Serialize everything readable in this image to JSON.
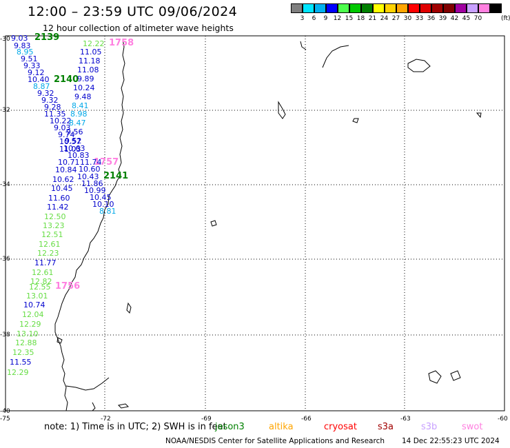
{
  "header": {
    "title": "12:00 – 23:59 UTC 09/06/2024",
    "subtitle": "12 hour collection of altimeter wave heights"
  },
  "legend": {
    "unit": "(ft)",
    "colors": [
      "#7f7f7f",
      "#00e5ff",
      "#00b0f0",
      "#0000ff",
      "#4dff4d",
      "#00c800",
      "#008000",
      "#ffff00",
      "#ffd200",
      "#ffa500",
      "#ff0000",
      "#e00000",
      "#a00000",
      "#800000",
      "#a000a0",
      "#c8a0ff",
      "#ff80e0",
      "#000000"
    ],
    "labels": [
      "3",
      "6",
      "9",
      "12",
      "15",
      "18",
      "21",
      "24",
      "27",
      "30",
      "33",
      "36",
      "39",
      "42",
      "45",
      "70"
    ]
  },
  "axes": {
    "lat_labels": [
      "-30",
      "-32",
      "-34",
      "-36",
      "-38",
      "-40"
    ],
    "lon_labels": [
      "-75",
      "-72",
      "-69",
      "-66",
      "-63",
      "-60"
    ]
  },
  "passes": [
    {
      "text": "2139",
      "color": "#008000"
    },
    {
      "text": "1758",
      "color": "#ff80e0"
    },
    {
      "text": "2140",
      "color": "#008000"
    },
    {
      "text": "1757",
      "color": "#ff80e0"
    },
    {
      "text": "2141",
      "color": "#008000"
    },
    {
      "text": "1756",
      "color": "#ff80e0"
    }
  ],
  "wave_heights": [
    {
      "text": "9.03",
      "color": "#0000cd"
    },
    {
      "text": "9.83",
      "color": "#0000cd"
    },
    {
      "text": "8.95",
      "color": "#00a8e8"
    },
    {
      "text": "9.51",
      "color": "#0000cd"
    },
    {
      "text": "9.33",
      "color": "#0000cd"
    },
    {
      "text": "9.12",
      "color": "#0000cd"
    },
    {
      "text": "10.40",
      "color": "#0000cd"
    },
    {
      "text": "8.87",
      "color": "#00a8e8"
    },
    {
      "text": "9.32",
      "color": "#0000cd"
    },
    {
      "text": "9.32",
      "color": "#0000cd"
    },
    {
      "text": "9.28",
      "color": "#0000cd"
    },
    {
      "text": "11.35",
      "color": "#0000cd"
    },
    {
      "text": "10.22",
      "color": "#0000cd"
    },
    {
      "text": "9.03",
      "color": "#0000cd"
    },
    {
      "text": "9.74",
      "color": "#0000cd"
    },
    {
      "text": "10.57",
      "color": "#0000cd"
    },
    {
      "text": "11.03",
      "color": "#0000cd"
    },
    {
      "text": "10.71",
      "color": "#0000cd"
    },
    {
      "text": "10.84",
      "color": "#0000cd"
    },
    {
      "text": "10.62",
      "color": "#0000cd"
    },
    {
      "text": "10.45",
      "color": "#0000cd"
    },
    {
      "text": "11.60",
      "color": "#0000cd"
    },
    {
      "text": "11.42",
      "color": "#0000cd"
    },
    {
      "text": "12.50",
      "color": "#66dd44"
    },
    {
      "text": "13.23",
      "color": "#66dd44"
    },
    {
      "text": "12.51",
      "color": "#66dd44"
    },
    {
      "text": "12.61",
      "color": "#66dd44"
    },
    {
      "text": "12.23",
      "color": "#66dd44"
    },
    {
      "text": "11.77",
      "color": "#0000cd"
    },
    {
      "text": "12.61",
      "color": "#66dd44"
    },
    {
      "text": "12.82",
      "color": "#66dd44"
    },
    {
      "text": "12.55",
      "color": "#66dd44"
    },
    {
      "text": "13.01",
      "color": "#66dd44"
    },
    {
      "text": "10.74",
      "color": "#0000cd"
    },
    {
      "text": "12.04",
      "color": "#66dd44"
    },
    {
      "text": "12.29",
      "color": "#66dd44"
    },
    {
      "text": "13.10",
      "color": "#66dd44"
    },
    {
      "text": "12.88",
      "color": "#66dd44"
    },
    {
      "text": "12.35",
      "color": "#66dd44"
    },
    {
      "text": "11.55",
      "color": "#0000cd"
    },
    {
      "text": "12.29",
      "color": "#66dd44"
    },
    {
      "text": "12.22",
      "color": "#66dd44"
    },
    {
      "text": "11.05",
      "color": "#0000cd"
    },
    {
      "text": "11.18",
      "color": "#0000cd"
    },
    {
      "text": "11.08",
      "color": "#0000cd"
    },
    {
      "text": "9.89",
      "color": "#0000cd"
    },
    {
      "text": "10.24",
      "color": "#0000cd"
    },
    {
      "text": "9.48",
      "color": "#0000cd"
    },
    {
      "text": "8.41",
      "color": "#00a8e8"
    },
    {
      "text": "8.98",
      "color": "#00a8e8"
    },
    {
      "text": "8.47",
      "color": "#00a8e8"
    },
    {
      "text": "9.56",
      "color": "#0000cd"
    },
    {
      "text": "9.52",
      "color": "#0000cd"
    },
    {
      "text": "10.63",
      "color": "#0000cd"
    },
    {
      "text": "10.83",
      "color": "#0000cd"
    },
    {
      "text": "11.74",
      "color": "#0000cd"
    },
    {
      "text": "10.60",
      "color": "#0000cd"
    },
    {
      "text": "10.43",
      "color": "#0000cd"
    },
    {
      "text": "11.86",
      "color": "#0000cd"
    },
    {
      "text": "10.99",
      "color": "#0000cd"
    },
    {
      "text": "10.45",
      "color": "#0000cd"
    },
    {
      "text": "10.10",
      "color": "#0000cd"
    },
    {
      "text": "8.81",
      "color": "#00a8e8"
    }
  ],
  "footer": {
    "note": "note:  1) Time is in UTC;  2) SWH is in feet",
    "satellites": [
      {
        "name": "jason3",
        "color": "#008000"
      },
      {
        "name": "altika",
        "color": "#ffa500"
      },
      {
        "name": "cryosat",
        "color": "#ff0000"
      },
      {
        "name": "s3a",
        "color": "#a00000"
      },
      {
        "name": "s3b",
        "color": "#c8a0ff"
      },
      {
        "name": "swot",
        "color": "#ff80e0"
      }
    ],
    "credit": "NOAA/NESDIS Center for Satellite Applications and Research",
    "generated": "14 Dec 22:55:23 UTC 2024"
  }
}
